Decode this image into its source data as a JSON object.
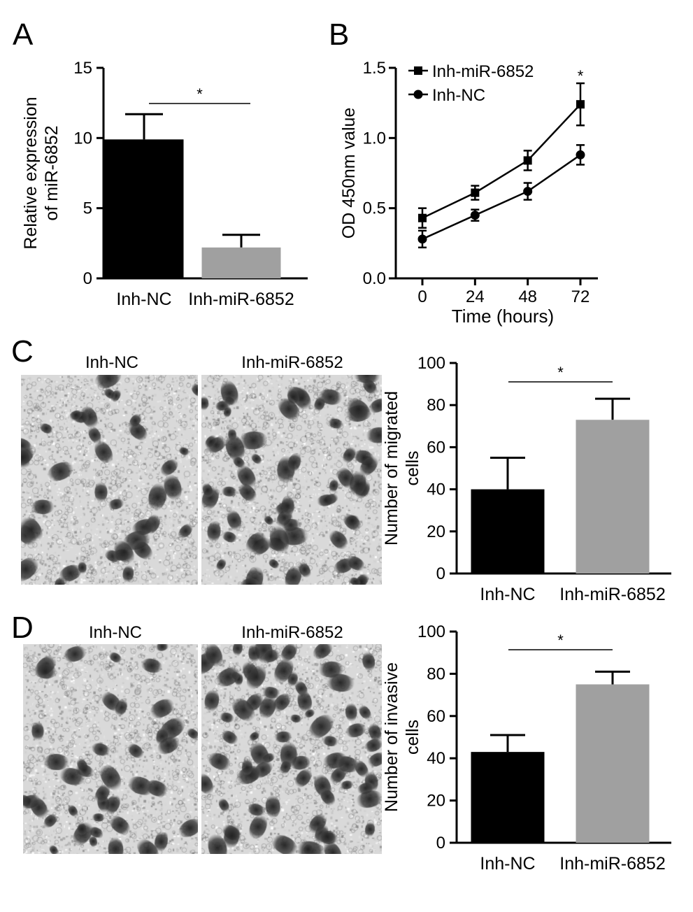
{
  "colors": {
    "black": "#000000",
    "gray": "#a0a0a0"
  },
  "panels": {
    "A": {
      "letter": "A"
    },
    "B": {
      "letter": "B"
    },
    "C": {
      "letter": "C",
      "img_left_label": "Inh-NC",
      "img_right_label": "Inh-miR-6852"
    },
    "D": {
      "letter": "D",
      "img_left_label": "Inh-NC",
      "img_right_label": "Inh-miR-6852"
    }
  },
  "chart_data": [
    {
      "id": "A",
      "type": "bar",
      "categories": [
        "Inh-NC",
        "Inh-miR-6852"
      ],
      "values": [
        9.9,
        2.2
      ],
      "errors": [
        1.8,
        0.9
      ],
      "bar_colors": [
        "#000000",
        "#a0a0a0"
      ],
      "ylabel_lines": [
        "Relative expression",
        "of miR-6852"
      ],
      "ylim": [
        0,
        15
      ],
      "yticks": [
        "0",
        "5",
        "10",
        "15"
      ],
      "significance": "*"
    },
    {
      "id": "B",
      "type": "line",
      "x": [
        0,
        24,
        48,
        72
      ],
      "xticks": [
        "0",
        "24",
        "48",
        "72"
      ],
      "series": [
        {
          "name": "Inh-miR-6852",
          "marker": "square",
          "values": [
            0.43,
            0.61,
            0.84,
            1.24
          ],
          "errors": [
            0.07,
            0.05,
            0.07,
            0.15
          ]
        },
        {
          "name": "Inh-NC",
          "marker": "circle",
          "values": [
            0.28,
            0.45,
            0.62,
            0.88
          ],
          "errors": [
            0.06,
            0.04,
            0.06,
            0.07
          ]
        }
      ],
      "xlabel": "Time (hours)",
      "ylabel": "OD 450nm value",
      "ylim": [
        0,
        1.5
      ],
      "yticks": [
        "0.0",
        "0.5",
        "1.0",
        "1.5"
      ],
      "significance": "*"
    },
    {
      "id": "C",
      "type": "bar",
      "categories": [
        "Inh-NC",
        "Inh-miR-6852"
      ],
      "values": [
        40,
        73
      ],
      "errors": [
        15,
        10
      ],
      "bar_colors": [
        "#000000",
        "#a0a0a0"
      ],
      "ylabel_lines": [
        "Number of migrated",
        "cells"
      ],
      "ylim": [
        0,
        100
      ],
      "yticks": [
        "0",
        "20",
        "40",
        "60",
        "80",
        "100"
      ],
      "significance": "*"
    },
    {
      "id": "D",
      "type": "bar",
      "categories": [
        "Inh-NC",
        "Inh-miR-6852"
      ],
      "values": [
        43,
        75
      ],
      "errors": [
        8,
        6
      ],
      "bar_colors": [
        "#000000",
        "#a0a0a0"
      ],
      "ylabel_lines": [
        "Number of invasive",
        "cells"
      ],
      "ylim": [
        0,
        100
      ],
      "yticks": [
        "0",
        "20",
        "40",
        "60",
        "80",
        "100"
      ],
      "significance": "*"
    }
  ]
}
